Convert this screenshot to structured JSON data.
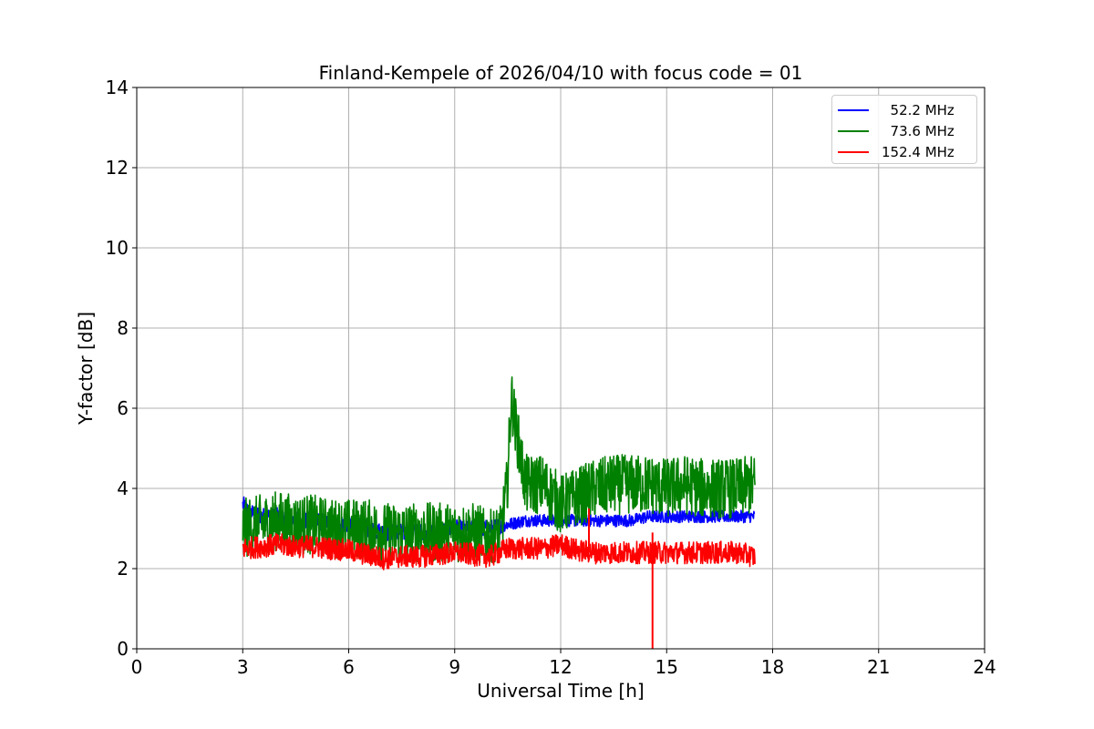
{
  "chart_data": {
    "type": "line",
    "title": "Finland-Kempele of 2026/04/10 with focus code = 01",
    "xlabel": "Universal Time [h]",
    "ylabel": "Y-factor [dB]",
    "xlim": [
      0,
      24
    ],
    "ylim": [
      0,
      14
    ],
    "xticks": [
      0,
      3,
      6,
      9,
      12,
      15,
      18,
      21,
      24
    ],
    "yticks": [
      0,
      2,
      4,
      6,
      8,
      10,
      12,
      14
    ],
    "grid": true,
    "legend_position": "top-right",
    "series": [
      {
        "name": "  52.2 MHz",
        "color": "#0000ff",
        "x": [
          3.0,
          3.2,
          3.6,
          4.0,
          4.5,
          5.0,
          5.5,
          6.0,
          6.5,
          7.0,
          7.5,
          8.0,
          8.5,
          9.0,
          9.5,
          10.0,
          10.5,
          11.0,
          11.5,
          12.0,
          12.5,
          13.0,
          13.5,
          14.0,
          14.5,
          15.0,
          15.5,
          16.0,
          16.5,
          17.0,
          17.5
        ],
        "y": [
          3.6,
          3.4,
          3.3,
          3.3,
          3.2,
          3.2,
          3.1,
          3.1,
          3.0,
          2.9,
          2.9,
          2.9,
          2.9,
          3.0,
          3.0,
          3.0,
          3.1,
          3.2,
          3.2,
          3.2,
          3.2,
          3.2,
          3.2,
          3.2,
          3.3,
          3.3,
          3.3,
          3.3,
          3.3,
          3.3,
          3.3
        ]
      },
      {
        "name": "  73.6 MHz",
        "color": "#008000",
        "x": [
          3.0,
          3.5,
          4.0,
          4.5,
          5.0,
          5.5,
          6.0,
          6.5,
          7.0,
          7.5,
          8.0,
          8.5,
          9.0,
          9.5,
          10.0,
          10.3,
          10.5,
          10.6,
          10.75,
          11.0,
          11.5,
          12.0,
          12.5,
          13.0,
          13.5,
          14.0,
          14.5,
          15.0,
          15.5,
          16.0,
          16.5,
          17.0,
          17.5
        ],
        "y": [
          3.0,
          3.1,
          3.2,
          3.1,
          3.1,
          3.0,
          3.0,
          3.0,
          2.9,
          2.9,
          2.9,
          2.9,
          2.9,
          2.9,
          2.8,
          2.9,
          4.2,
          6.3,
          5.4,
          4.1,
          4.1,
          3.6,
          3.8,
          4.0,
          4.1,
          4.1,
          4.1,
          4.0,
          4.1,
          4.0,
          4.0,
          4.0,
          4.1
        ]
      },
      {
        "name": "152.4 MHz",
        "color": "#ff0000",
        "x": [
          3.0,
          3.5,
          4.0,
          4.5,
          5.0,
          5.5,
          6.0,
          6.5,
          7.0,
          7.5,
          8.0,
          8.5,
          9.0,
          9.5,
          10.0,
          10.5,
          11.0,
          11.5,
          12.0,
          12.5,
          13.0,
          13.5,
          14.0,
          14.5,
          15.0,
          15.5,
          16.0,
          16.5,
          17.0,
          17.5
        ],
        "y": [
          2.5,
          2.55,
          2.6,
          2.55,
          2.55,
          2.5,
          2.45,
          2.35,
          2.25,
          2.3,
          2.3,
          2.35,
          2.4,
          2.35,
          2.3,
          2.5,
          2.5,
          2.5,
          2.6,
          2.45,
          2.4,
          2.4,
          2.4,
          2.4,
          2.4,
          2.4,
          2.4,
          2.4,
          2.4,
          2.3
        ]
      }
    ],
    "annotations": [
      {
        "series": "152.4 MHz",
        "type": "spike",
        "x": 14.6,
        "y_min": 0.0,
        "y_max": 2.9
      },
      {
        "series": "152.4 MHz",
        "type": "spike",
        "x": 12.8,
        "y_min": 2.4,
        "y_max": 3.5
      }
    ]
  }
}
